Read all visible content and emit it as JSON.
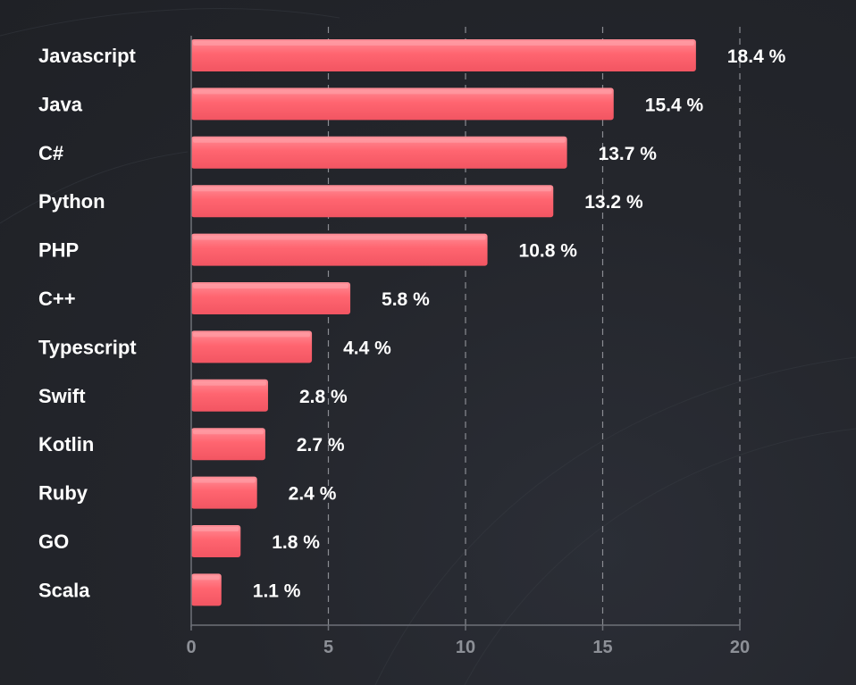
{
  "chart_data": {
    "type": "bar",
    "orientation": "horizontal",
    "categories": [
      "Javascript",
      "Java",
      "C#",
      "Python",
      "PHP",
      "C++",
      "Typescript",
      "Swift",
      "Kotlin",
      "Ruby",
      "GO",
      "Scala"
    ],
    "values": [
      18.4,
      15.4,
      13.7,
      13.2,
      10.8,
      5.8,
      4.4,
      2.8,
      2.7,
      2.4,
      1.8,
      1.1
    ],
    "value_labels": [
      "18.4 %",
      "15.4 %",
      "13.7 %",
      "13.2 %",
      "10.8 %",
      "5.8 %",
      "4.4 %",
      "2.8 %",
      "2.7 %",
      "2.4 %",
      "1.8 %",
      "1.1 %"
    ],
    "xlim": [
      0,
      20
    ],
    "x_ticks": [
      0,
      5,
      10,
      15,
      20
    ],
    "x_tick_labels": [
      "0",
      "5",
      "10",
      "15",
      "20"
    ],
    "grid": "vertical dashed",
    "colors": {
      "bar": "#ff5f6b",
      "bar_highlight": "#ff8d96",
      "background": "#24262c",
      "text": "#ffffff",
      "tick_text": "#8d9097"
    }
  }
}
